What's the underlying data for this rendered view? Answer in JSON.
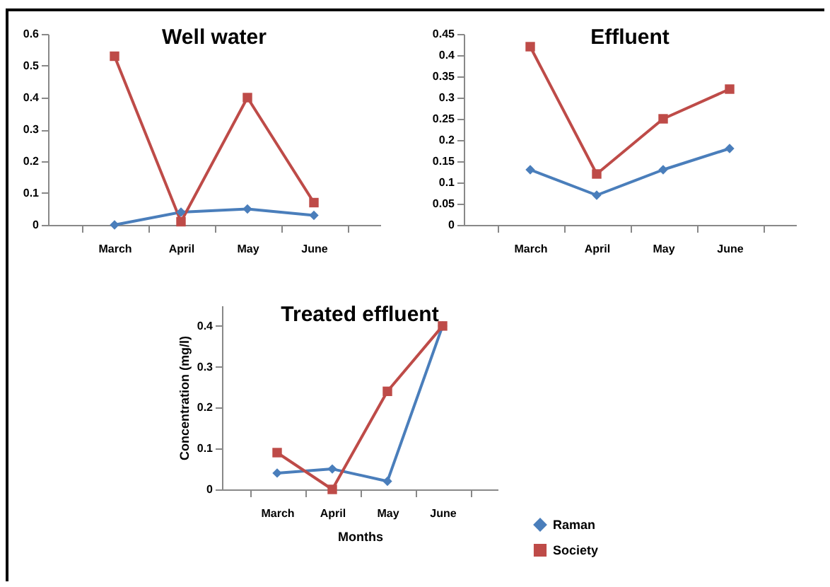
{
  "chart_data": [
    {
      "type": "line",
      "title": "Well water",
      "categories": [
        "March",
        "April",
        "May",
        "June"
      ],
      "ylim": [
        0,
        0.6
      ],
      "yticks": [
        0,
        0.1,
        0.2,
        0.3,
        0.4,
        0.5,
        0.6
      ],
      "grid": false,
      "legend": false,
      "series": [
        {
          "color": "#4a7ebb",
          "marker": "diamond",
          "values": [
            0,
            0.04,
            0.05,
            0.03
          ]
        },
        {
          "color": "#be4b48",
          "marker": "square",
          "values": [
            0.53,
            0.01,
            0.4,
            0.07
          ]
        }
      ]
    },
    {
      "type": "line",
      "title": "Effluent",
      "categories": [
        "March",
        "April",
        "May",
        "June"
      ],
      "ylim": [
        0,
        0.45
      ],
      "yticks": [
        0,
        0.05,
        0.1,
        0.15,
        0.2,
        0.25,
        0.3,
        0.35,
        0.4,
        0.45
      ],
      "grid": false,
      "legend": false,
      "series": [
        {
          "color": "#4a7ebb",
          "marker": "diamond",
          "values": [
            0.13,
            0.07,
            0.13,
            0.18
          ]
        },
        {
          "color": "#be4b48",
          "marker": "square",
          "values": [
            0.42,
            0.12,
            0.25,
            0.32
          ]
        }
      ]
    },
    {
      "type": "line",
      "title": "Treated effluent",
      "xlabel": "Months",
      "ylabel": "Concentration (mg/l)",
      "categories": [
        "March",
        "April",
        "May",
        "June"
      ],
      "ylim": [
        0,
        0.45
      ],
      "yticks": [
        0,
        0.1,
        0.2,
        0.3,
        0.4
      ],
      "grid": false,
      "legend": "bottom right",
      "series": [
        {
          "name": "Raman",
          "color": "#4a7ebb",
          "marker": "diamond",
          "values": [
            0.04,
            0.05,
            0.02,
            0.4
          ]
        },
        {
          "name": "Society",
          "color": "#be4b48",
          "marker": "square",
          "values": [
            0.09,
            0,
            0.24,
            0.4
          ]
        }
      ]
    }
  ]
}
